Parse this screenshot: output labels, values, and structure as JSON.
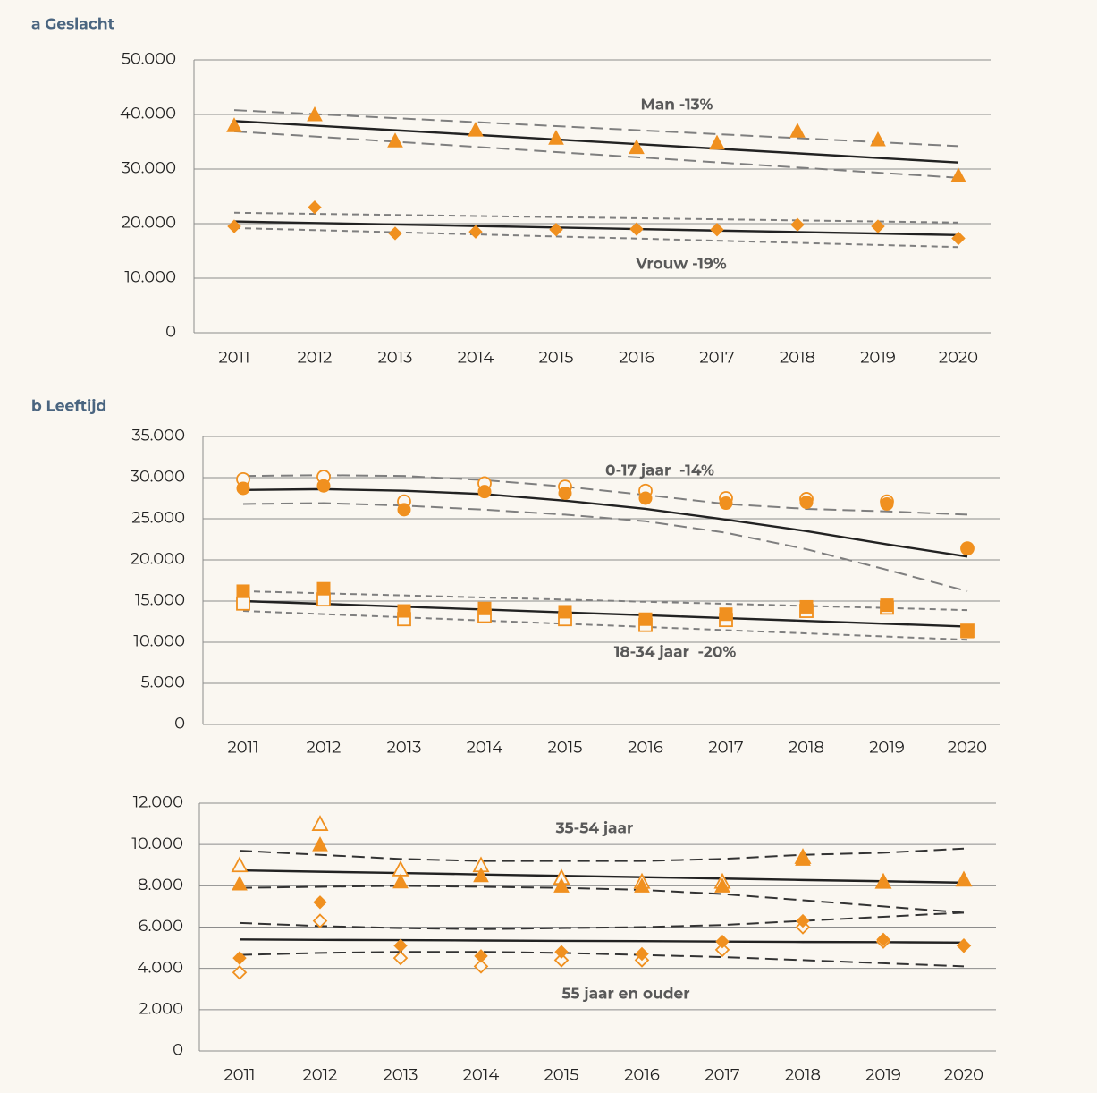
{
  "chart_data": [
    {
      "type": "line",
      "title": "a Geslacht",
      "categories": [
        "2011",
        "2012",
        "2013",
        "2014",
        "2015",
        "2016",
        "2017",
        "2018",
        "2019",
        "2020"
      ],
      "ylim": [
        0,
        50000
      ],
      "yticks": [
        0,
        {
          "value": 10000,
          "label": "10.000"
        },
        {
          "value": 20000,
          "label": "20.000"
        },
        {
          "value": 30000,
          "label": "30.000"
        },
        {
          "value": 40000,
          "label": "40.000"
        },
        {
          "value": 50000,
          "label": "50.000"
        }
      ],
      "grid": true,
      "annotations": [
        {
          "text": "Man -13%"
        },
        {
          "text": "Vrouw -19%"
        }
      ],
      "series": [
        {
          "color": "#7f7f7f",
          "style": "dashed",
          "values": [
            40800,
            40070,
            39330,
            38600,
            37870,
            37130,
            36400,
            35670,
            34930,
            34200
          ]
        },
        {
          "color": "#7f7f7f",
          "style": "dashed",
          "values": [
            36900,
            35960,
            35010,
            34070,
            33120,
            32180,
            31230,
            30290,
            29340,
            28400
          ]
        },
        {
          "color": "#222222",
          "style": "solid",
          "values": [
            38800,
            37960,
            37110,
            36270,
            35420,
            34580,
            33730,
            32890,
            32040,
            31200
          ]
        },
        {
          "color": "#7f7f7f",
          "style": "short-dashed",
          "values": [
            22000,
            21800,
            21600,
            21400,
            21200,
            21000,
            20800,
            20600,
            20400,
            20200
          ]
        },
        {
          "color": "#7f7f7f",
          "style": "short-dashed",
          "values": [
            19200,
            18810,
            18420,
            18030,
            17640,
            17260,
            16870,
            16480,
            16090,
            15700
          ]
        },
        {
          "color": "#222222",
          "style": "solid",
          "values": [
            20400,
            20120,
            19840,
            19570,
            19290,
            19010,
            18730,
            18460,
            18180,
            17900
          ]
        },
        {
          "color": "#f0901f",
          "style": "markers",
          "marker": "triangle",
          "filled": true,
          "values": [
            38000,
            40000,
            35200,
            37200,
            35700,
            34000,
            34800,
            37000,
            35400,
            28800
          ]
        },
        {
          "color": "#f0901f",
          "style": "markers",
          "marker": "diamond",
          "filled": true,
          "values": [
            19500,
            23000,
            18200,
            18500,
            18900,
            19000,
            18900,
            19800,
            19500,
            17300
          ]
        }
      ]
    },
    {
      "type": "line",
      "title": "b Leeftijd",
      "categories": [
        "2011",
        "2012",
        "2013",
        "2014",
        "2015",
        "2016",
        "2017",
        "2018",
        "2019",
        "2020"
      ],
      "ylim": [
        0,
        35000
      ],
      "yticks": [
        0,
        {
          "value": 5000,
          "label": "5.000"
        },
        {
          "value": 10000,
          "label": "10.000"
        },
        {
          "value": 15000,
          "label": "15.000"
        },
        {
          "value": 20000,
          "label": "20.000"
        },
        {
          "value": 25000,
          "label": "25.000"
        },
        {
          "value": 30000,
          "label": "30.000"
        },
        {
          "value": 35000,
          "label": "35.000"
        }
      ],
      "grid": true,
      "annotations": [
        {
          "text": "0-17 jaar  -14%"
        },
        {
          "text": "18-34 jaar  -20%"
        }
      ],
      "series": [
        {
          "color": "#7f7f7f",
          "style": "dashed",
          "values": [
            30200,
            30300,
            30200,
            29700,
            28900,
            27900,
            26800,
            26200,
            25900,
            25500
          ]
        },
        {
          "color": "#7f7f7f",
          "style": "dashed",
          "values": [
            26800,
            26900,
            26600,
            26100,
            25500,
            24700,
            23300,
            21300,
            18800,
            16200
          ]
        },
        {
          "color": "#222222",
          "style": "solid",
          "values": [
            28500,
            28600,
            28400,
            28000,
            27200,
            26200,
            24900,
            23500,
            21900,
            20400
          ]
        },
        {
          "color": "#7f7f7f",
          "style": "short-dashed",
          "values": [
            16200,
            15940,
            15690,
            15430,
            15180,
            14920,
            14670,
            14410,
            14160,
            13900
          ]
        },
        {
          "color": "#7f7f7f",
          "style": "short-dashed",
          "values": [
            13800,
            13410,
            13020,
            12630,
            12240,
            11860,
            11470,
            11080,
            10690,
            10300
          ]
        },
        {
          "color": "#222222",
          "style": "solid",
          "values": [
            15000,
            14660,
            14310,
            13970,
            13620,
            13280,
            12930,
            12590,
            12240,
            11900
          ]
        },
        {
          "color": "#f0901f",
          "style": "markers",
          "marker": "circle",
          "filled": false,
          "values": [
            29800,
            30100,
            27100,
            29300,
            28900,
            28400,
            27500,
            27400,
            27100,
            21400
          ]
        },
        {
          "color": "#f0901f",
          "style": "markers",
          "marker": "circle",
          "filled": true,
          "values": [
            28700,
            29000,
            26100,
            28300,
            28100,
            27500,
            26900,
            27000,
            26800,
            21400
          ]
        },
        {
          "color": "#f0901f",
          "style": "markers",
          "marker": "square",
          "filled": false,
          "values": [
            14700,
            15200,
            12800,
            13200,
            12800,
            12100,
            12700,
            13800,
            14200,
            11400
          ]
        },
        {
          "color": "#f0901f",
          "style": "markers",
          "marker": "square",
          "filled": true,
          "values": [
            16200,
            16500,
            13800,
            14100,
            13700,
            12800,
            13400,
            14300,
            14500,
            11300
          ]
        }
      ]
    },
    {
      "type": "line",
      "categories": [
        "2011",
        "2012",
        "2013",
        "2014",
        "2015",
        "2016",
        "2017",
        "2018",
        "2019",
        "2020"
      ],
      "ylim": [
        0,
        12000
      ],
      "yticks": [
        0,
        {
          "value": 2000,
          "label": "2.000"
        },
        {
          "value": 4000,
          "label": "4.000"
        },
        {
          "value": 6000,
          "label": "6.000"
        },
        {
          "value": 8000,
          "label": "8.000"
        },
        {
          "value": 10000,
          "label": "10.000"
        },
        {
          "value": 12000,
          "label": "12.000"
        }
      ],
      "grid": true,
      "annotations": [
        {
          "text": "35-54 jaar"
        },
        {
          "text": "55 jaar en ouder"
        }
      ],
      "series": [
        {
          "color": "#333333",
          "style": "dashed",
          "values": [
            9700,
            9500,
            9300,
            9200,
            9200,
            9200,
            9300,
            9500,
            9600,
            9800
          ]
        },
        {
          "color": "#333333",
          "style": "dashed",
          "values": [
            7900,
            7950,
            8000,
            7950,
            7900,
            7800,
            7600,
            7300,
            7000,
            6700
          ]
        },
        {
          "color": "#222222",
          "style": "solid",
          "values": [
            8750,
            8680,
            8620,
            8550,
            8480,
            8420,
            8350,
            8280,
            8220,
            8150
          ]
        },
        {
          "color": "#333333",
          "style": "dashed",
          "values": [
            6200,
            6050,
            5950,
            5900,
            5950,
            6000,
            6100,
            6300,
            6500,
            6700
          ]
        },
        {
          "color": "#333333",
          "style": "dashed",
          "values": [
            4650,
            4750,
            4800,
            4800,
            4750,
            4650,
            4550,
            4400,
            4250,
            4100
          ]
        },
        {
          "color": "#222222",
          "style": "solid",
          "values": [
            5400,
            5380,
            5370,
            5350,
            5330,
            5320,
            5300,
            5280,
            5270,
            5250
          ]
        },
        {
          "color": "#f0901f",
          "style": "markers",
          "marker": "triangle",
          "filled": false,
          "values": [
            9000,
            11000,
            8800,
            9000,
            8400,
            8200,
            8200,
            9400,
            8200,
            8300
          ]
        },
        {
          "color": "#f0901f",
          "style": "markers",
          "marker": "triangle",
          "filled": true,
          "values": [
            8100,
            10000,
            8200,
            8500,
            8000,
            8000,
            8000,
            9300,
            8200,
            8300
          ]
        },
        {
          "color": "#f0901f",
          "style": "markers",
          "marker": "diamond",
          "filled": false,
          "values": [
            3800,
            6300,
            4500,
            4100,
            4400,
            4400,
            4900,
            6000,
            5300,
            5100
          ]
        },
        {
          "color": "#f0901f",
          "style": "markers",
          "marker": "diamond",
          "filled": true,
          "values": [
            4500,
            7200,
            5100,
            4600,
            4800,
            4700,
            5300,
            6300,
            5400,
            5100
          ]
        }
      ]
    }
  ]
}
